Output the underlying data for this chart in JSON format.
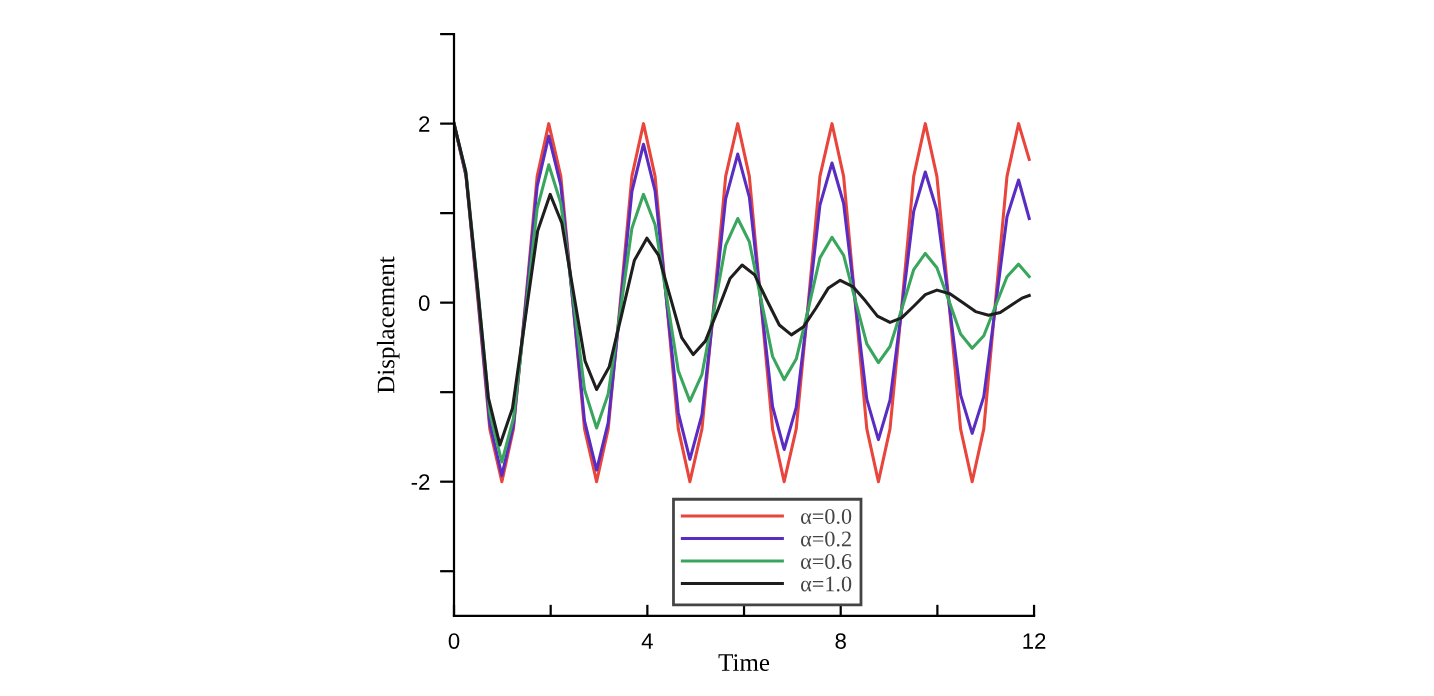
{
  "chart_data": {
    "type": "line",
    "xlabel": "Time",
    "ylabel": "Displacement",
    "x": [
      0,
      0.25,
      0.5,
      0.74,
      0.99,
      1.23,
      1.48,
      1.72,
      1.96,
      2.21,
      2.46,
      2.7,
      2.95,
      3.19,
      3.44,
      3.68,
      3.92,
      4.16,
      4.4,
      4.64,
      4.88,
      5.13,
      5.38,
      5.62,
      5.87,
      6.11,
      6.35,
      6.59,
      6.83,
      7.08,
      7.33,
      7.57,
      7.82,
      8.06,
      8.3,
      8.54,
      8.78,
      9.02,
      9.27,
      9.51,
      9.75,
      9.99,
      10.24,
      10.48,
      10.72,
      10.96,
      11.2,
      11.44,
      11.68,
      11.9
    ],
    "series": [
      {
        "name": "α=0.0",
        "color": "#e8453c",
        "values": [
          2,
          1.41,
          0,
          -1.41,
          -2,
          -1.41,
          0,
          1.41,
          2,
          1.41,
          0,
          -1.41,
          -2,
          -1.41,
          0,
          1.41,
          2,
          1.41,
          0,
          -1.41,
          -2,
          -1.41,
          0,
          1.41,
          2,
          1.41,
          0,
          -1.41,
          -2,
          -1.41,
          0,
          1.41,
          2,
          1.41,
          0,
          -1.41,
          -2,
          -1.41,
          0,
          1.41,
          2,
          1.41,
          0,
          -1.41,
          -2,
          -1.41,
          0,
          1.41,
          2,
          1.6
        ]
      },
      {
        "name": "α=0.2",
        "color": "#5a2dc2",
        "values": [
          2,
          1.42,
          0.04,
          -1.35,
          -1.93,
          -1.37,
          -0.04,
          1.3,
          1.86,
          1.31,
          0,
          -1.32,
          -1.87,
          -1.34,
          -0.05,
          1.24,
          1.77,
          1.25,
          0.01,
          -1.23,
          -1.75,
          -1.25,
          -0.05,
          1.16,
          1.66,
          1.18,
          0.01,
          -1.16,
          -1.64,
          -1.17,
          -0.04,
          1.09,
          1.56,
          1.11,
          0.02,
          -1.08,
          -1.53,
          -1.09,
          -0.04,
          1.02,
          1.46,
          1.03,
          0,
          -1.03,
          -1.46,
          -1.05,
          -0.05,
          0.96,
          1.37,
          0.94
        ]
      },
      {
        "name": "α=0.6",
        "color": "#3aa55c",
        "values": [
          2,
          1.45,
          0.11,
          -1.23,
          -1.78,
          -1.29,
          -0.12,
          1.05,
          1.54,
          1.11,
          0.07,
          -0.97,
          -1.4,
          -1.02,
          -0.1,
          0.83,
          1.21,
          0.87,
          0.06,
          -0.76,
          -1.1,
          -0.8,
          -0.08,
          0.64,
          0.94,
          0.68,
          0.04,
          -0.6,
          -0.86,
          -0.63,
          -0.07,
          0.5,
          0.73,
          0.53,
          0.03,
          -0.46,
          -0.67,
          -0.49,
          -0.06,
          0.37,
          0.55,
          0.39,
          0.02,
          -0.35,
          -0.51,
          -0.37,
          -0.04,
          0.29,
          0.43,
          0.29
        ]
      },
      {
        "name": "α=1.0",
        "color": "#1e1e1e",
        "x": [
          0,
          0.24,
          0.48,
          0.71,
          0.95,
          1.21,
          1.47,
          1.73,
          1.99,
          2.23,
          2.47,
          2.71,
          2.95,
          3.21,
          3.47,
          3.73,
          3.99,
          4.23,
          4.47,
          4.71,
          4.95,
          5.2,
          5.46,
          5.71,
          5.96,
          6.22,
          6.47,
          6.73,
          6.98,
          7.23,
          7.49,
          7.74,
          7.99,
          8.25,
          8.51,
          8.76,
          9.02,
          9.26,
          9.51,
          9.75,
          9.99,
          10.26,
          10.53,
          10.79,
          11.06,
          11.3,
          11.55,
          11.75,
          11.9
        ],
        "values": [
          2,
          1.47,
          0.21,
          -1.06,
          -1.59,
          -1.18,
          -0.19,
          0.8,
          1.21,
          0.89,
          0.12,
          -0.65,
          -0.97,
          -0.72,
          -0.13,
          0.47,
          0.72,
          0.53,
          0.07,
          -0.39,
          -0.58,
          -0.43,
          -0.08,
          0.27,
          0.42,
          0.31,
          0.03,
          -0.25,
          -0.36,
          -0.27,
          -0.06,
          0.16,
          0.25,
          0.18,
          0.02,
          -0.15,
          -0.22,
          -0.17,
          -0.04,
          0.09,
          0.14,
          0.1,
          0,
          -0.1,
          -0.14,
          -0.11,
          -0.02,
          0.05,
          0.08
        ]
      }
    ],
    "xlim": [
      0,
      12
    ],
    "xticks": [
      0,
      {
        "value": 2,
        "label": null
      },
      4,
      {
        "value": 6,
        "label": null
      },
      8,
      {
        "value": 10,
        "label": null
      },
      12
    ],
    "ylim": [
      -3.5,
      3
    ],
    "yticks": [
      {
        "value": -3,
        "label": null
      },
      -2,
      {
        "value": -1,
        "label": null
      },
      0,
      {
        "value": 1,
        "label": null
      },
      2,
      {
        "value": 3,
        "label": null
      }
    ],
    "grid": false,
    "legend": "bottom",
    "marker": "none",
    "line_style": "solid"
  }
}
